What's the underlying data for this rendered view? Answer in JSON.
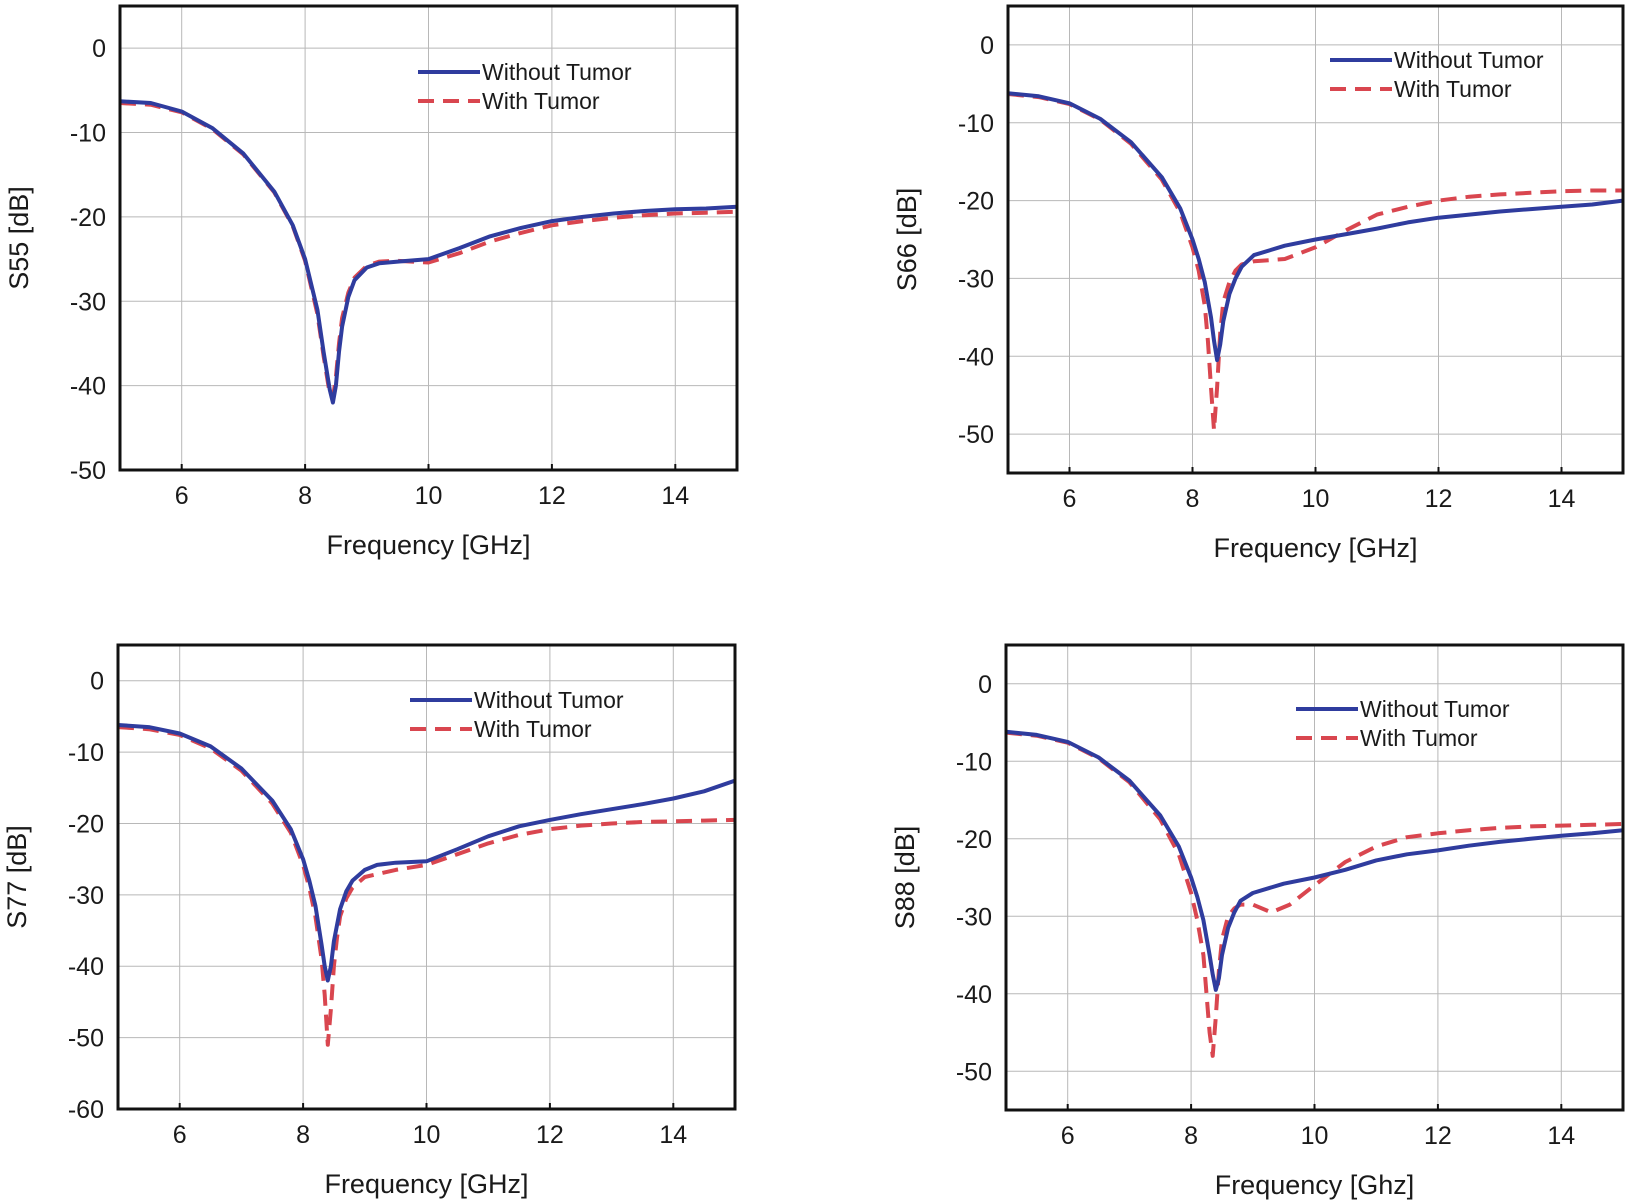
{
  "colors": {
    "without_tumor": "#2f3c9e",
    "with_tumor": "#d9464f"
  },
  "chart_data": [
    {
      "type": "line",
      "ylabel": "S55 [dB]",
      "xlabel": "Frequency [GHz]",
      "xlim": [
        5,
        15
      ],
      "ylim": [
        -50,
        5
      ],
      "xticks": [
        6,
        8,
        10,
        12,
        14
      ],
      "yticks": [
        0,
        -10,
        -20,
        -30,
        -40,
        -50
      ],
      "grid": true,
      "legend": [
        "Without Tumor",
        "With Tumor"
      ],
      "series": [
        {
          "name": "Without Tumor",
          "x": [
            5,
            5.5,
            6,
            6.5,
            7,
            7.5,
            7.8,
            8.0,
            8.2,
            8.3,
            8.4,
            8.45,
            8.5,
            8.55,
            8.6,
            8.7,
            8.8,
            9.0,
            9.2,
            9.5,
            10.0,
            10.5,
            11,
            11.5,
            12,
            12.5,
            13,
            13.5,
            14,
            14.5,
            15
          ],
          "y": [
            -6.3,
            -6.5,
            -7.5,
            -9.5,
            -12.5,
            -17.0,
            -21.0,
            -25.0,
            -31.0,
            -36.0,
            -40.5,
            -42.0,
            -40.0,
            -36.0,
            -33.0,
            -29.5,
            -27.5,
            -26.0,
            -25.5,
            -25.3,
            -25.0,
            -23.7,
            -22.3,
            -21.3,
            -20.5,
            -20.0,
            -19.6,
            -19.3,
            -19.1,
            -19.0,
            -18.8
          ]
        },
        {
          "name": "With Tumor",
          "x": [
            5,
            5.5,
            6,
            6.5,
            7,
            7.5,
            7.8,
            8.0,
            8.2,
            8.3,
            8.4,
            8.45,
            8.5,
            8.55,
            8.6,
            8.7,
            8.8,
            9.0,
            9.2,
            9.5,
            10.0,
            10.5,
            11,
            11.5,
            12,
            12.5,
            13,
            13.5,
            14,
            14.5,
            15
          ],
          "y": [
            -6.5,
            -6.7,
            -7.6,
            -9.6,
            -12.6,
            -17.1,
            -21.1,
            -25.2,
            -31.5,
            -36.5,
            -41.0,
            -41.5,
            -39.0,
            -35.0,
            -32.0,
            -29.0,
            -27.2,
            -25.8,
            -25.3,
            -25.2,
            -25.4,
            -24.3,
            -22.9,
            -21.9,
            -21.0,
            -20.5,
            -20.1,
            -19.8,
            -19.6,
            -19.5,
            -19.4
          ]
        }
      ]
    },
    {
      "type": "line",
      "ylabel": "S66 [dB]",
      "xlabel": "Frequency [GHz]",
      "xlim": [
        5,
        15
      ],
      "ylim": [
        -55,
        5
      ],
      "xticks": [
        6,
        8,
        10,
        12,
        14
      ],
      "yticks": [
        0,
        -10,
        -20,
        -30,
        -40,
        -50
      ],
      "grid": true,
      "legend": [
        "Without Tumor",
        "With Tumor"
      ],
      "series": [
        {
          "name": "Without Tumor",
          "x": [
            5,
            5.5,
            6,
            6.5,
            7,
            7.5,
            7.8,
            8.0,
            8.1,
            8.2,
            8.3,
            8.35,
            8.4,
            8.45,
            8.5,
            8.6,
            8.7,
            8.8,
            9.0,
            9.5,
            10.0,
            10.5,
            11,
            11.5,
            12,
            12.5,
            13,
            13.5,
            14,
            14.5,
            15
          ],
          "y": [
            -6.2,
            -6.6,
            -7.5,
            -9.5,
            -12.5,
            -17.0,
            -21.0,
            -25.0,
            -27.5,
            -30.5,
            -35.0,
            -38.0,
            -40.5,
            -38.5,
            -35.5,
            -32.0,
            -30.0,
            -28.5,
            -27.0,
            -25.8,
            -25.0,
            -24.3,
            -23.6,
            -22.8,
            -22.2,
            -21.8,
            -21.4,
            -21.1,
            -20.8,
            -20.5,
            -20.0
          ]
        },
        {
          "name": "With Tumor",
          "x": [
            5,
            5.5,
            6,
            6.5,
            7,
            7.5,
            7.8,
            8.0,
            8.1,
            8.2,
            8.25,
            8.3,
            8.35,
            8.4,
            8.45,
            8.5,
            8.6,
            8.7,
            8.8,
            9.0,
            9.5,
            10.0,
            10.5,
            11,
            11.5,
            12,
            12.5,
            13,
            13.5,
            14,
            14.5,
            15
          ],
          "y": [
            -6.3,
            -6.7,
            -7.6,
            -9.6,
            -12.7,
            -17.3,
            -21.5,
            -26.0,
            -29.0,
            -33.5,
            -38.0,
            -44.0,
            -49.5,
            -44.0,
            -37.0,
            -33.0,
            -30.5,
            -29.0,
            -28.2,
            -27.8,
            -27.5,
            -26.0,
            -23.8,
            -21.8,
            -20.8,
            -20.0,
            -19.5,
            -19.2,
            -19.0,
            -18.8,
            -18.7,
            -18.7
          ]
        }
      ]
    },
    {
      "type": "line",
      "ylabel": "S77 [dB]",
      "xlabel": "Frequency [GHz]",
      "xlim": [
        5,
        15
      ],
      "ylim": [
        -60,
        5
      ],
      "xticks": [
        6,
        8,
        10,
        12,
        14
      ],
      "yticks": [
        0,
        -10,
        -20,
        -30,
        -40,
        -50,
        -60
      ],
      "grid": true,
      "legend": [
        "Without Tumor",
        "With Tumor"
      ],
      "series": [
        {
          "name": "Without Tumor",
          "x": [
            5,
            5.5,
            6,
            6.5,
            7,
            7.5,
            7.8,
            8.0,
            8.1,
            8.2,
            8.3,
            8.35,
            8.4,
            8.45,
            8.5,
            8.6,
            8.7,
            8.8,
            9.0,
            9.2,
            9.5,
            10.0,
            10.5,
            11,
            11.5,
            12,
            12.5,
            13,
            13.5,
            14,
            14.5,
            15
          ],
          "y": [
            -6.2,
            -6.5,
            -7.4,
            -9.2,
            -12.3,
            -16.8,
            -20.8,
            -25.0,
            -28.0,
            -31.5,
            -37.0,
            -40.0,
            -42.0,
            -40.0,
            -36.5,
            -32.0,
            -29.5,
            -28.0,
            -26.5,
            -25.8,
            -25.5,
            -25.3,
            -23.6,
            -21.8,
            -20.4,
            -19.5,
            -18.7,
            -18.0,
            -17.3,
            -16.5,
            -15.5,
            -14.0
          ]
        },
        {
          "name": "With Tumor",
          "x": [
            5,
            5.5,
            6,
            6.5,
            7,
            7.5,
            7.8,
            8.0,
            8.1,
            8.2,
            8.3,
            8.35,
            8.4,
            8.45,
            8.5,
            8.55,
            8.6,
            8.7,
            8.8,
            9.0,
            9.5,
            10.0,
            10.5,
            11,
            11.5,
            12,
            12.5,
            13,
            13.5,
            14,
            14.5,
            15
          ],
          "y": [
            -6.5,
            -6.8,
            -7.6,
            -9.5,
            -12.6,
            -17.2,
            -21.3,
            -25.8,
            -29.0,
            -33.0,
            -39.0,
            -44.0,
            -51.0,
            -46.0,
            -40.0,
            -36.0,
            -33.0,
            -30.5,
            -29.0,
            -27.5,
            -26.5,
            -25.8,
            -24.3,
            -22.8,
            -21.6,
            -20.8,
            -20.3,
            -20.0,
            -19.8,
            -19.7,
            -19.6,
            -19.5
          ]
        }
      ]
    },
    {
      "type": "line",
      "ylabel": "S88 [dB]",
      "xlabel": "Frequency [Ghz]",
      "xlim": [
        5,
        15
      ],
      "ylim": [
        -55,
        5
      ],
      "xticks": [
        6,
        8,
        10,
        12,
        14
      ],
      "yticks": [
        0,
        -10,
        -20,
        -30,
        -40,
        -50
      ],
      "grid": true,
      "legend": [
        "Without Tumor",
        "With Tumor"
      ],
      "series": [
        {
          "name": "Without Tumor",
          "x": [
            5,
            5.5,
            6,
            6.5,
            7,
            7.5,
            7.8,
            8.0,
            8.1,
            8.2,
            8.3,
            8.35,
            8.4,
            8.45,
            8.5,
            8.6,
            8.7,
            8.8,
            9.0,
            9.5,
            10.0,
            10.5,
            11,
            11.5,
            12,
            12.5,
            13,
            13.5,
            14,
            14.5,
            15
          ],
          "y": [
            -6.2,
            -6.6,
            -7.5,
            -9.5,
            -12.5,
            -17.0,
            -21.0,
            -25.0,
            -27.5,
            -30.5,
            -35.0,
            -37.5,
            -39.5,
            -38.0,
            -35.0,
            -31.5,
            -29.5,
            -28.0,
            -27.0,
            -25.8,
            -25.0,
            -24.0,
            -22.8,
            -22.0,
            -21.5,
            -20.9,
            -20.4,
            -20.0,
            -19.6,
            -19.3,
            -18.9
          ]
        },
        {
          "name": "With Tumor",
          "x": [
            5,
            5.5,
            6,
            6.5,
            7,
            7.5,
            7.8,
            8.0,
            8.1,
            8.2,
            8.25,
            8.3,
            8.35,
            8.4,
            8.45,
            8.5,
            8.6,
            8.7,
            8.8,
            9.0,
            9.3,
            9.6,
            10.0,
            10.5,
            11,
            11.5,
            12,
            12.5,
            13,
            13.5,
            14,
            14.5,
            15
          ],
          "y": [
            -6.3,
            -6.7,
            -7.6,
            -9.6,
            -12.7,
            -17.5,
            -22.0,
            -27.0,
            -30.5,
            -35.0,
            -40.0,
            -45.0,
            -48.0,
            -43.0,
            -37.0,
            -33.0,
            -30.0,
            -29.0,
            -28.5,
            -28.5,
            -29.5,
            -28.5,
            -26.0,
            -23.0,
            -21.0,
            -19.8,
            -19.3,
            -18.9,
            -18.6,
            -18.4,
            -18.3,
            -18.2,
            -18.1
          ]
        }
      ]
    }
  ]
}
